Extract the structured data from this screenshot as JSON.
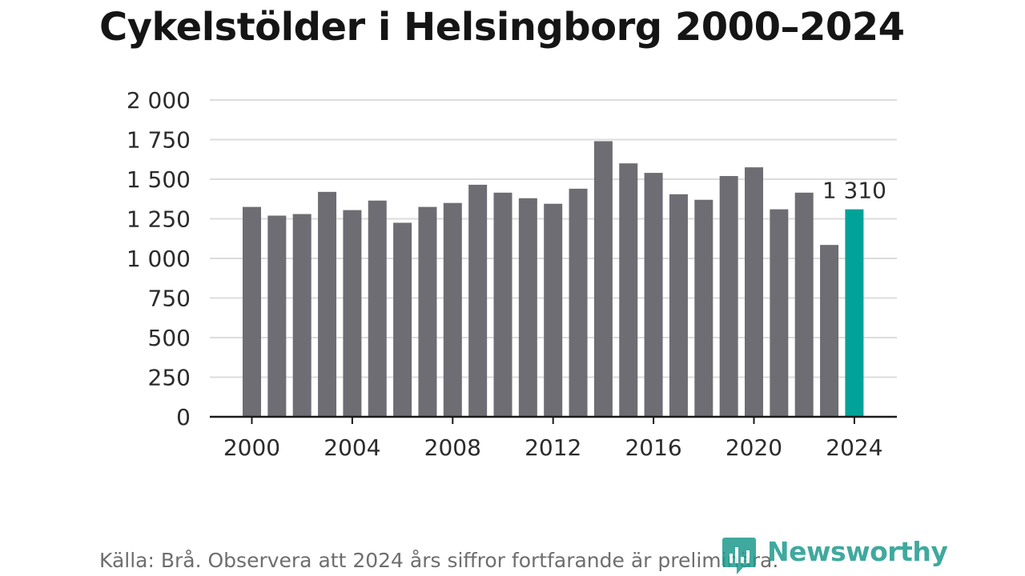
{
  "title": "Cykelstölder i Helsingborg 2000–2024",
  "source": "Källa: Brå. Observera att 2024 års siffror fortfarande är preliminära.",
  "brand": {
    "name": "Newsworthy",
    "color": "#1f9b8e",
    "logo_icon": "bar-chart-speech-bubble-icon"
  },
  "colors": {
    "bar": "#6d6d73",
    "highlight": "#00a29a",
    "grid": "#dcdcdc",
    "axis": "#1a1a1a"
  },
  "chart_data": {
    "type": "bar",
    "title": "Cykelstölder i Helsingborg 2000–2024",
    "x": [
      2000,
      2001,
      2002,
      2003,
      2004,
      2005,
      2006,
      2007,
      2008,
      2009,
      2010,
      2011,
      2012,
      2013,
      2014,
      2015,
      2016,
      2017,
      2018,
      2019,
      2020,
      2021,
      2022,
      2023,
      2024
    ],
    "values": [
      1325,
      1270,
      1280,
      1420,
      1305,
      1365,
      1225,
      1325,
      1350,
      1465,
      1415,
      1380,
      1345,
      1440,
      1740,
      1600,
      1540,
      1405,
      1370,
      1520,
      1575,
      1310,
      1415,
      1085,
      1310
    ],
    "highlight_index": 24,
    "annotation": {
      "text": "1 310",
      "index": 24
    },
    "ylim": [
      0,
      2000
    ],
    "yticks": [
      0,
      250,
      500,
      750,
      1000,
      1250,
      1500,
      1750,
      2000
    ],
    "ytick_labels": [
      "0",
      "250",
      "500",
      "750",
      "1 000",
      "1 250",
      "1 500",
      "1 750",
      "2 000"
    ],
    "xticks": [
      2000,
      2004,
      2008,
      2012,
      2016,
      2020,
      2024
    ],
    "xtick_labels": [
      "2000",
      "2004",
      "2008",
      "2012",
      "2016",
      "2020",
      "2024"
    ],
    "grid": true,
    "xlabel": "",
    "ylabel": ""
  }
}
